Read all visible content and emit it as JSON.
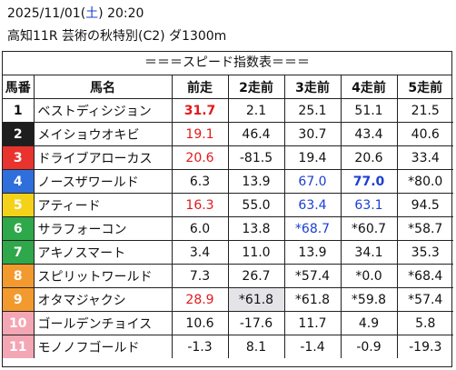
{
  "header": {
    "date": "2025/11/01",
    "weekday_open": "(",
    "weekday": "土",
    "weekday_close": ")",
    "time": "20:20",
    "race": "高知11R 芸術の秋特別(C2) ダ1300m"
  },
  "table_title": "＝＝＝スピード指数表＝＝＝",
  "columns": [
    "馬番",
    "馬名",
    "前走",
    "2走前",
    "3走前",
    "4走前",
    "5走前"
  ],
  "colors": {
    "red": "#e01a1a",
    "blue": "#1a3fd0",
    "highlight_bg": "#e3e3e8"
  },
  "rows": [
    {
      "gate": "1",
      "gate_bg": "#ffffff",
      "gate_fg": "#111111",
      "name": "ベストディシジョン",
      "cells": [
        {
          "v": "31.7",
          "c": "red",
          "b": true
        },
        {
          "v": "2.1"
        },
        {
          "v": "25.1"
        },
        {
          "v": "51.1"
        },
        {
          "v": "21.5"
        }
      ]
    },
    {
      "gate": "2",
      "gate_bg": "#1e1e1e",
      "gate_fg": "#ffffff",
      "name": "メイショウオキビ",
      "cells": [
        {
          "v": "19.1",
          "c": "red"
        },
        {
          "v": "46.4"
        },
        {
          "v": "30.7"
        },
        {
          "v": "43.4"
        },
        {
          "v": "40.6"
        }
      ]
    },
    {
      "gate": "3",
      "gate_bg": "#e8332e",
      "gate_fg": "#ffffff",
      "name": "ドライブアローカス",
      "cells": [
        {
          "v": "20.6",
          "c": "red"
        },
        {
          "v": "-81.5"
        },
        {
          "v": "19.4"
        },
        {
          "v": "20.6"
        },
        {
          "v": "33.4"
        }
      ]
    },
    {
      "gate": "4",
      "gate_bg": "#2f6fdc",
      "gate_fg": "#ffffff",
      "name": "ノースザワールド",
      "cells": [
        {
          "v": "6.3"
        },
        {
          "v": "13.9"
        },
        {
          "v": "67.0",
          "c": "blue"
        },
        {
          "v": "77.0",
          "c": "blue",
          "b": true
        },
        {
          "v": "*80.0"
        }
      ]
    },
    {
      "gate": "5",
      "gate_bg": "#f4d21a",
      "gate_fg": "#ffffff",
      "name": "アティード",
      "cells": [
        {
          "v": "16.3",
          "c": "red"
        },
        {
          "v": "55.0"
        },
        {
          "v": "63.4",
          "c": "blue"
        },
        {
          "v": "63.1",
          "c": "blue"
        },
        {
          "v": "94.5"
        }
      ]
    },
    {
      "gate": "6",
      "gate_bg": "#2ea84a",
      "gate_fg": "#ffffff",
      "name": "サラフォーコン",
      "cells": [
        {
          "v": "6.0"
        },
        {
          "v": "13.8"
        },
        {
          "v": "*68.7",
          "c": "blue"
        },
        {
          "v": "*60.7"
        },
        {
          "v": "*58.7"
        }
      ]
    },
    {
      "gate": "7",
      "gate_bg": "#2ea84a",
      "gate_fg": "#ffffff",
      "name": "アキノスマート",
      "cells": [
        {
          "v": "3.4"
        },
        {
          "v": "11.0"
        },
        {
          "v": "13.9"
        },
        {
          "v": "34.1"
        },
        {
          "v": "35.3"
        }
      ]
    },
    {
      "gate": "8",
      "gate_bg": "#f39a2e",
      "gate_fg": "#ffffff",
      "name": "スピリットワールド",
      "cells": [
        {
          "v": "7.3"
        },
        {
          "v": "26.7"
        },
        {
          "v": "*57.4"
        },
        {
          "v": "*0.0"
        },
        {
          "v": "*68.4"
        }
      ]
    },
    {
      "gate": "9",
      "gate_bg": "#f39a2e",
      "gate_fg": "#ffffff",
      "name": "オタマジャクシ",
      "cells": [
        {
          "v": "28.9",
          "c": "red"
        },
        {
          "v": "*61.8",
          "hl": true
        },
        {
          "v": "*61.8"
        },
        {
          "v": "*59.8"
        },
        {
          "v": "*57.4"
        }
      ]
    },
    {
      "gate": "10",
      "gate_bg": "#f3a6b4",
      "gate_fg": "#ffffff",
      "name": "ゴールデンチョイス",
      "cells": [
        {
          "v": "10.6"
        },
        {
          "v": "-17.6"
        },
        {
          "v": "11.7"
        },
        {
          "v": "4.9"
        },
        {
          "v": "5.8"
        }
      ]
    },
    {
      "gate": "11",
      "gate_bg": "#f3a6b4",
      "gate_fg": "#ffffff",
      "name": "モノノフゴールド",
      "cells": [
        {
          "v": "-1.3"
        },
        {
          "v": "8.1"
        },
        {
          "v": "-1.4"
        },
        {
          "v": "-0.9"
        },
        {
          "v": "-19.3"
        }
      ]
    }
  ]
}
